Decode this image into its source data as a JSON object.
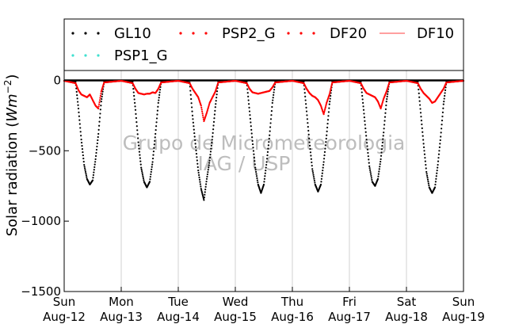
{
  "chart_data": {
    "type": "scatter",
    "ylabel": "Solar radiation (Wm⁻²)",
    "ylabel_prefix": "Solar radiation (",
    "ylabel_unit": "Wm",
    "ylabel_exp": "−2",
    "ylabel_suffix": ")",
    "xlabel": "",
    "ylim": [
      -1500,
      70
    ],
    "xlim": [
      0,
      7
    ],
    "y_ticks": [
      {
        "value": 0,
        "label": "0"
      },
      {
        "value": -500,
        "label": "−500"
      },
      {
        "value": -1000,
        "label": "−1000"
      },
      {
        "value": -1500,
        "label": "−1500"
      }
    ],
    "x_ticks": [
      {
        "value": 0,
        "line1": "Sun",
        "line2": "Aug-12"
      },
      {
        "value": 1,
        "line1": "Mon",
        "line2": "Aug-13"
      },
      {
        "value": 2,
        "line1": "Tue",
        "line2": "Aug-14"
      },
      {
        "value": 3,
        "line1": "Wed",
        "line2": "Aug-15"
      },
      {
        "value": 4,
        "line1": "Thu",
        "line2": "Aug-16"
      },
      {
        "value": 5,
        "line1": "Fri",
        "line2": "Aug-17"
      },
      {
        "value": 6,
        "line1": "Sat",
        "line2": "Aug-18"
      },
      {
        "value": 7,
        "line1": "Sun",
        "line2": "Aug-19"
      }
    ],
    "grid": "vertical",
    "legend_position": "top",
    "watermark": [
      "Grupo de Micrometeorologia",
      "IAG / USP"
    ],
    "series": [
      {
        "name": "GL10",
        "style": "dots",
        "color": "#000000",
        "points": [
          [
            0.0,
            -3
          ],
          [
            0.2,
            -10
          ],
          [
            0.25,
            -200
          ],
          [
            0.3,
            -420
          ],
          [
            0.35,
            -600
          ],
          [
            0.4,
            -700
          ],
          [
            0.45,
            -740
          ],
          [
            0.5,
            -710
          ],
          [
            0.55,
            -560
          ],
          [
            0.6,
            -380
          ],
          [
            0.65,
            -150
          ],
          [
            0.7,
            -10
          ],
          [
            1.0,
            -3
          ],
          [
            1.2,
            -10
          ],
          [
            1.25,
            -210
          ],
          [
            1.3,
            -440
          ],
          [
            1.35,
            -620
          ],
          [
            1.4,
            -720
          ],
          [
            1.45,
            -760
          ],
          [
            1.5,
            -720
          ],
          [
            1.55,
            -580
          ],
          [
            1.6,
            -380
          ],
          [
            1.65,
            -160
          ],
          [
            1.7,
            -10
          ],
          [
            2.0,
            -3
          ],
          [
            2.2,
            -15
          ],
          [
            2.25,
            -250
          ],
          [
            2.3,
            -450
          ],
          [
            2.35,
            -640
          ],
          [
            2.4,
            -770
          ],
          [
            2.45,
            -850
          ],
          [
            2.5,
            -700
          ],
          [
            2.55,
            -570
          ],
          [
            2.6,
            -400
          ],
          [
            2.65,
            -190
          ],
          [
            2.7,
            -10
          ],
          [
            3.0,
            -3
          ],
          [
            3.2,
            -10
          ],
          [
            3.25,
            -220
          ],
          [
            3.3,
            -430
          ],
          [
            3.35,
            -620
          ],
          [
            3.4,
            -740
          ],
          [
            3.45,
            -800
          ],
          [
            3.5,
            -740
          ],
          [
            3.55,
            -580
          ],
          [
            3.6,
            -390
          ],
          [
            3.65,
            -160
          ],
          [
            3.7,
            -10
          ],
          [
            4.0,
            -3
          ],
          [
            4.2,
            -10
          ],
          [
            4.25,
            -220
          ],
          [
            4.3,
            -440
          ],
          [
            4.35,
            -630
          ],
          [
            4.4,
            -740
          ],
          [
            4.45,
            -790
          ],
          [
            4.5,
            -740
          ],
          [
            4.55,
            -580
          ],
          [
            4.6,
            -390
          ],
          [
            4.65,
            -170
          ],
          [
            4.7,
            -10
          ],
          [
            5.0,
            -3
          ],
          [
            5.2,
            -10
          ],
          [
            5.25,
            -210
          ],
          [
            5.3,
            -420
          ],
          [
            5.35,
            -610
          ],
          [
            5.4,
            -720
          ],
          [
            5.45,
            -750
          ],
          [
            5.5,
            -700
          ],
          [
            5.55,
            -560
          ],
          [
            5.6,
            -370
          ],
          [
            5.65,
            -150
          ],
          [
            5.7,
            -10
          ],
          [
            6.0,
            -3
          ],
          [
            6.2,
            -10
          ],
          [
            6.25,
            -230
          ],
          [
            6.3,
            -450
          ],
          [
            6.35,
            -650
          ],
          [
            6.4,
            -760
          ],
          [
            6.45,
            -800
          ],
          [
            6.5,
            -760
          ],
          [
            6.55,
            -600
          ],
          [
            6.6,
            -400
          ],
          [
            6.65,
            -170
          ],
          [
            6.7,
            -10
          ],
          [
            7.0,
            -3
          ]
        ]
      },
      {
        "name": "PSP2_G",
        "style": "dots",
        "color": "#ff0000",
        "points": []
      },
      {
        "name": "DF20",
        "style": "dots",
        "color": "#ff0000",
        "points": [
          [
            0.0,
            -3
          ],
          [
            0.2,
            -20
          ],
          [
            0.25,
            -70
          ],
          [
            0.3,
            -100
          ],
          [
            0.35,
            -110
          ],
          [
            0.4,
            -120
          ],
          [
            0.45,
            -100
          ],
          [
            0.5,
            -140
          ],
          [
            0.55,
            -180
          ],
          [
            0.6,
            -200
          ],
          [
            0.65,
            -80
          ],
          [
            0.7,
            -15
          ],
          [
            1.0,
            -3
          ],
          [
            1.2,
            -20
          ],
          [
            1.25,
            -60
          ],
          [
            1.3,
            -90
          ],
          [
            1.35,
            -95
          ],
          [
            1.4,
            -100
          ],
          [
            1.45,
            -95
          ],
          [
            1.5,
            -95
          ],
          [
            1.55,
            -85
          ],
          [
            1.6,
            -90
          ],
          [
            1.65,
            -60
          ],
          [
            1.7,
            -15
          ],
          [
            2.0,
            -3
          ],
          [
            2.2,
            -20
          ],
          [
            2.25,
            -60
          ],
          [
            2.3,
            -90
          ],
          [
            2.35,
            -120
          ],
          [
            2.4,
            -180
          ],
          [
            2.45,
            -290
          ],
          [
            2.5,
            -230
          ],
          [
            2.55,
            -160
          ],
          [
            2.6,
            -120
          ],
          [
            2.65,
            -80
          ],
          [
            2.7,
            -15
          ],
          [
            3.0,
            -3
          ],
          [
            3.2,
            -20
          ],
          [
            3.25,
            -60
          ],
          [
            3.3,
            -85
          ],
          [
            3.35,
            -90
          ],
          [
            3.4,
            -95
          ],
          [
            3.45,
            -90
          ],
          [
            3.5,
            -85
          ],
          [
            3.55,
            -80
          ],
          [
            3.6,
            -75
          ],
          [
            3.65,
            -50
          ],
          [
            3.7,
            -15
          ],
          [
            4.0,
            -3
          ],
          [
            4.2,
            -20
          ],
          [
            4.25,
            -60
          ],
          [
            4.3,
            -90
          ],
          [
            4.35,
            -110
          ],
          [
            4.4,
            -120
          ],
          [
            4.45,
            -140
          ],
          [
            4.5,
            -180
          ],
          [
            4.55,
            -240
          ],
          [
            4.6,
            -160
          ],
          [
            4.65,
            -100
          ],
          [
            4.7,
            -15
          ],
          [
            5.0,
            -3
          ],
          [
            5.2,
            -20
          ],
          [
            5.25,
            -60
          ],
          [
            5.3,
            -90
          ],
          [
            5.35,
            -100
          ],
          [
            5.4,
            -110
          ],
          [
            5.45,
            -120
          ],
          [
            5.5,
            -150
          ],
          [
            5.55,
            -200
          ],
          [
            5.6,
            -130
          ],
          [
            5.65,
            -80
          ],
          [
            5.7,
            -15
          ],
          [
            6.0,
            -3
          ],
          [
            6.2,
            -20
          ],
          [
            6.25,
            -60
          ],
          [
            6.3,
            -90
          ],
          [
            6.35,
            -110
          ],
          [
            6.4,
            -130
          ],
          [
            6.45,
            -160
          ],
          [
            6.5,
            -150
          ],
          [
            6.55,
            -120
          ],
          [
            6.6,
            -90
          ],
          [
            6.65,
            -60
          ],
          [
            6.7,
            -15
          ],
          [
            7.0,
            -3
          ]
        ]
      },
      {
        "name": "DF10",
        "style": "line",
        "color": "#ff6666",
        "points": []
      },
      {
        "name": "PSP1_G",
        "style": "dots",
        "color": "#40e0d0",
        "points": []
      }
    ]
  }
}
